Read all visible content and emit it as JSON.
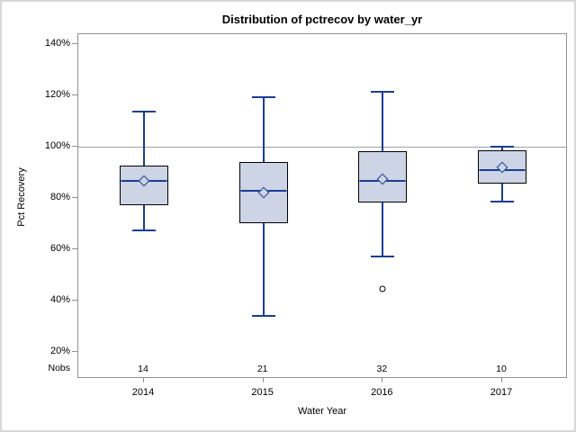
{
  "chart_data": {
    "type": "boxplot",
    "title": "Distribution of pctrecov by water_yr",
    "xlabel": "Water Year",
    "ylabel": "Pct Recovery",
    "categories": [
      "2014",
      "2015",
      "2016",
      "2017"
    ],
    "nobs_label": "Nobs",
    "nobs": [
      14,
      21,
      32,
      10
    ],
    "yticks": [
      20,
      40,
      60,
      80,
      100,
      120,
      140
    ],
    "ytick_suffix": "%",
    "ylim": [
      20,
      140
    ],
    "reference_line": 100,
    "grid": "off",
    "series": [
      {
        "category": "2014",
        "n": 14,
        "whisker_low": 67.5,
        "q1": 77.2,
        "median": 86.7,
        "mean": 86.5,
        "q3": 92.6,
        "whisker_high": 113.8,
        "outliers": []
      },
      {
        "category": "2015",
        "n": 21,
        "whisker_low": 34.0,
        "q1": 70.2,
        "median": 82.9,
        "mean": 82.0,
        "q3": 94.1,
        "whisker_high": 119.3,
        "outliers": []
      },
      {
        "category": "2016",
        "n": 32,
        "whisker_low": 57.2,
        "q1": 78.2,
        "median": 86.6,
        "mean": 87.4,
        "q3": 98.2,
        "whisker_high": 121.4,
        "outliers": [
          44.6
        ]
      },
      {
        "category": "2017",
        "n": 10,
        "whisker_low": 78.6,
        "q1": 85.6,
        "median": 90.9,
        "mean": 91.9,
        "q3": 98.6,
        "whisker_high": 100.0,
        "outliers": []
      }
    ],
    "colors": {
      "box_fill": "#ccd4e6",
      "box_border": "#000000",
      "line": "#1a3e94",
      "reference_line": "#9da2a8",
      "frame": "#8f9194",
      "outlier": "#000000",
      "text": "#000000"
    }
  }
}
